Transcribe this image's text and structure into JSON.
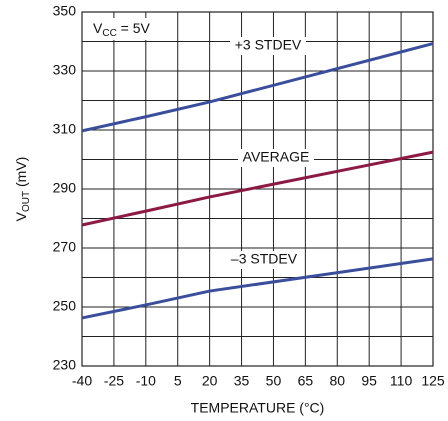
{
  "chart_data": {
    "type": "line",
    "annotation": {
      "main": "V",
      "sub": "CC",
      "rest": " = 5V"
    },
    "ylabel": {
      "main": "V",
      "sub": "OUT",
      "rest": "  (mV)"
    },
    "xlabel": "TEMPERATURE (°C)",
    "x": [
      -40,
      -10,
      20,
      125
    ],
    "series": [
      {
        "name": "+3 STDEV",
        "color": "#3a4e9c",
        "values": [
          309.7,
          314.5,
          319.5,
          339.3
        ]
      },
      {
        "name": "AVERAGE",
        "color": "#8c1a45",
        "values": [
          277.8,
          282.5,
          287.3,
          302.5
        ]
      },
      {
        "name": "–3 STDEV",
        "color": "#3a4e9c",
        "values": [
          246.3,
          250.7,
          255.4,
          266.3
        ]
      }
    ],
    "xlim": [
      -40,
      125
    ],
    "xticks": [
      -40,
      -25,
      -10,
      5,
      20,
      35,
      50,
      65,
      80,
      95,
      110,
      125
    ],
    "ylim": [
      230,
      350
    ],
    "yticks": [
      230,
      250,
      270,
      290,
      310,
      330,
      350
    ],
    "y_minor_ticks": [
      240,
      260,
      280,
      300,
      320,
      340
    ],
    "grid": true
  }
}
